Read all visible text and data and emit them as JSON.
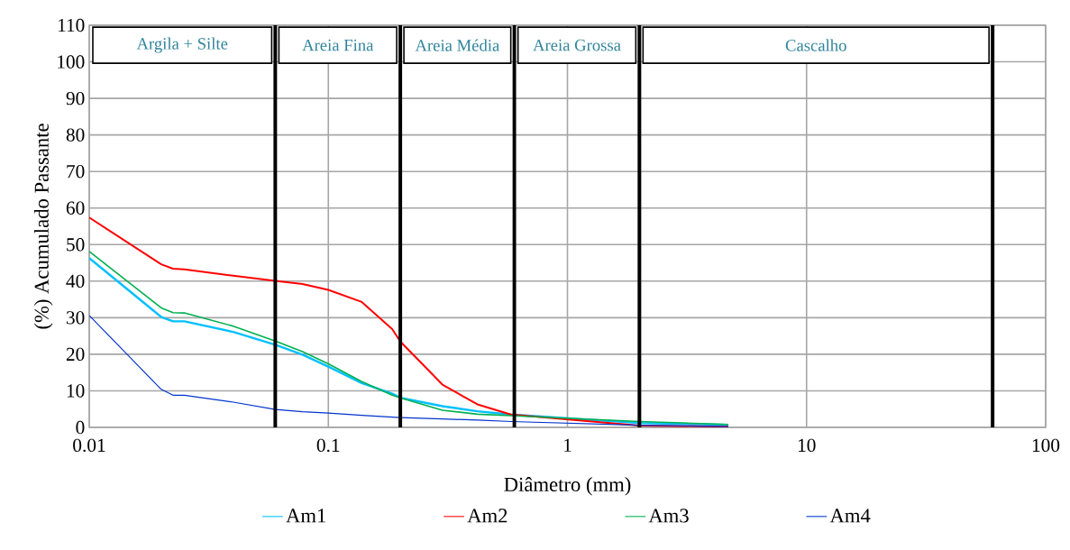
{
  "chart_data": {
    "type": "line",
    "xlabel": "Diâmetro (mm)",
    "ylabel": "(%) Acumulado Passante",
    "log": "x",
    "grid": true,
    "legend": "bottom",
    "marker": "none",
    "line_style": "solid",
    "xlim": [
      0.01,
      100
    ],
    "xticks": [
      0.01,
      0.1,
      1,
      10,
      100
    ],
    "ylim": [
      0,
      110
    ],
    "yticks": [
      0,
      10,
      20,
      30,
      40,
      50,
      60,
      70,
      80,
      90,
      100,
      110
    ],
    "x": [
      0.01,
      0.02,
      0.0224,
      0.025,
      0.04,
      0.06,
      0.078,
      0.1,
      0.138,
      0.185,
      0.2,
      0.3,
      0.42,
      0.58,
      2,
      4.71
    ],
    "series": [
      {
        "name": "Am1",
        "color": "#00c0ff",
        "values": [
          46.3,
          30.2,
          29.0,
          29.0,
          26.1,
          22.6,
          19.9,
          16.6,
          12.1,
          9.2,
          8.1,
          5.8,
          4.4,
          3.5,
          1.2,
          0.7
        ]
      },
      {
        "name": "Am2",
        "color": "#ff0000",
        "values": [
          57.4,
          44.6,
          43.4,
          43.2,
          41.5,
          40.1,
          39.2,
          37.6,
          34.3,
          26.9,
          23.5,
          11.7,
          6.3,
          3.5,
          0.5,
          0.2
        ]
      },
      {
        "name": "Am3",
        "color": "#00b050",
        "values": [
          48.1,
          32.7,
          31.4,
          31.3,
          27.7,
          23.6,
          20.7,
          17.4,
          12.5,
          8.8,
          8.1,
          4.7,
          3.6,
          3.2,
          1.6,
          0.8
        ]
      },
      {
        "name": "Am4",
        "color": "#0033cc",
        "values": [
          30.6,
          10.4,
          8.8,
          8.8,
          6.9,
          4.9,
          4.3,
          3.9,
          3.3,
          2.8,
          2.7,
          2.3,
          2.0,
          1.6,
          0.6,
          0.2
        ]
      }
    ],
    "ref_lines": [
      {
        "axis": "x",
        "value": 0.06,
        "color": "#000000"
      },
      {
        "axis": "x",
        "value": 0.2,
        "color": "#000000"
      },
      {
        "axis": "x",
        "value": 0.6,
        "color": "#000000"
      },
      {
        "axis": "x",
        "value": 2,
        "color": "#000000"
      },
      {
        "axis": "x",
        "value": 60,
        "color": "#000000"
      }
    ],
    "bands": [
      {
        "axis": "x",
        "from": 0.01,
        "to": 0.06,
        "label": "Argila + Silte"
      },
      {
        "axis": "x",
        "from": 0.06,
        "to": 0.2,
        "label": "Areia Fina"
      },
      {
        "axis": "x",
        "from": 0.2,
        "to": 0.6,
        "label": "Areia Média"
      },
      {
        "axis": "x",
        "from": 0.6,
        "to": 2,
        "label": "Areia Grossa"
      },
      {
        "axis": "x",
        "from": 2,
        "to": 60,
        "label": "Cascalho"
      }
    ]
  }
}
